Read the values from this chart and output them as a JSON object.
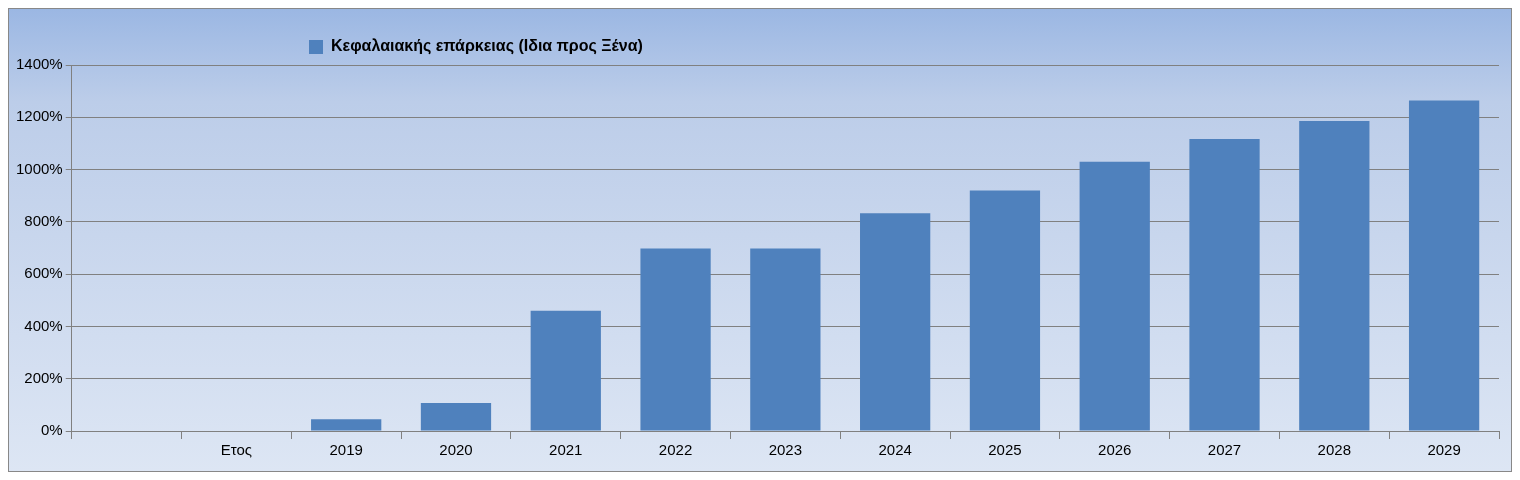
{
  "chart_data": {
    "type": "bar",
    "categories": [
      null,
      "Ετος",
      "2019",
      "2020",
      "2021",
      "2022",
      "2023",
      "2024",
      "2025",
      "2026",
      "2027",
      "2028",
      "2029"
    ],
    "series": [
      {
        "name": "Κεφαλαιακής επάρκειας (Ιδια προς Ξένα)",
        "color": "#4f81bd",
        "values": [
          null,
          null,
          45,
          107,
          460,
          698,
          698,
          833,
          920,
          1030,
          1117,
          1186,
          1264
        ]
      }
    ],
    "ylim": [
      0,
      1400
    ],
    "yticks": [
      {
        "value": 0,
        "label": "0%"
      },
      {
        "value": 200,
        "label": "200%"
      },
      {
        "value": 400,
        "label": "400%"
      },
      {
        "value": 600,
        "label": "600%"
      },
      {
        "value": 800,
        "label": "800%"
      },
      {
        "value": 1000,
        "label": "1000%"
      },
      {
        "value": 1200,
        "label": "1200%"
      },
      {
        "value": 1400,
        "label": "1400%"
      }
    ],
    "grid": "y",
    "legend": "top"
  }
}
